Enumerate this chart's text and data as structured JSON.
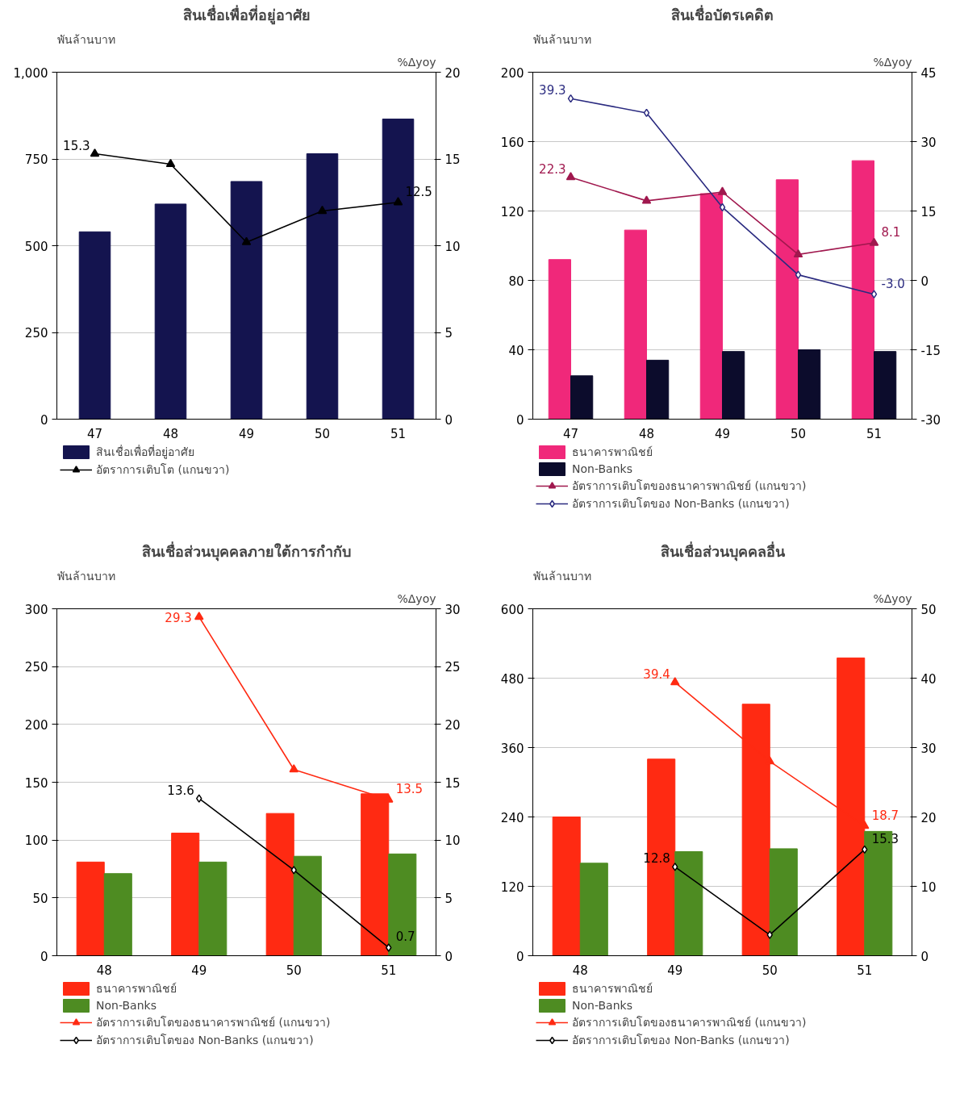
{
  "chart_data": [
    {
      "type": "bar",
      "title": "สินเชื่อเพื่อที่อยู่อาศัย",
      "ylabel": "พันล้านบาท",
      "y2label": "%Δyoy",
      "categories": [
        "47",
        "48",
        "49",
        "50",
        "51"
      ],
      "series": [
        {
          "name": "สินเชื่อเพื่อที่อยู่อาศัย",
          "color": "#14144f",
          "values": [
            540,
            620,
            685,
            765,
            865
          ]
        },
        {
          "name": "อัตราการเติบโต (แกนขวา)",
          "type": "line",
          "axis": "y2",
          "color": "#000000",
          "marker": "triangle",
          "values": [
            15.3,
            14.7,
            10.2,
            12.0,
            12.5
          ],
          "value_labels": [
            "15.3",
            null,
            null,
            null,
            "12.5"
          ]
        }
      ],
      "ylim": [
        0,
        1000
      ],
      "yticks": [
        0,
        250,
        500,
        750,
        {
          "value": 1000,
          "label": "1,000"
        }
      ],
      "y2lim": [
        0,
        20
      ],
      "y2ticks": [
        0,
        5,
        10,
        15,
        20
      ],
      "grid": "y",
      "legend": "bottom"
    },
    {
      "type": "bar",
      "title": "สินเชื่อบัตรเคดิต",
      "ylabel": "พันล้านบาท",
      "y2label": "%Δyoy",
      "categories": [
        "47",
        "48",
        "49",
        "50",
        "51"
      ],
      "series": [
        {
          "name": "ธนาคารพาณิชย์",
          "color": "#f0287a",
          "values": [
            92,
            109,
            130,
            138,
            149
          ]
        },
        {
          "name": "Non-Banks",
          "color": "#0c0c2c",
          "values": [
            25,
            34,
            39,
            40,
            39
          ]
        },
        {
          "name": "อัตราการเติบโตของธนาคารพาณิชย์ (แกนขวา)",
          "type": "line",
          "axis": "y2",
          "color": "#a0184e",
          "marker": "triangle",
          "values": [
            22.3,
            17.2,
            19.1,
            5.6,
            8.1
          ],
          "value_labels": [
            "22.3",
            null,
            null,
            null,
            "8.1"
          ]
        },
        {
          "name": "อัตราการเติบโตของ Non-Banks (แกนขวา)",
          "type": "line",
          "axis": "y2",
          "color": "#2b2b80",
          "marker": "diamond",
          "values": [
            39.3,
            36.2,
            15.8,
            1.2,
            -3.0
          ],
          "value_labels": [
            "39.3",
            null,
            null,
            null,
            "-3.0"
          ]
        }
      ],
      "ylim": [
        0,
        200
      ],
      "yticks": [
        0,
        40,
        80,
        120,
        160,
        200
      ],
      "y2lim": [
        -30,
        45
      ],
      "y2ticks": [
        -30,
        -15,
        0,
        15,
        30,
        45
      ],
      "grid": "y",
      "legend": "bottom"
    },
    {
      "type": "bar",
      "title": "สินเชื่อส่วนบุคคลภายใต้การกำกับ",
      "ylabel": "พันล้านบาท",
      "y2label": "%Δyoy",
      "categories": [
        "48",
        "49",
        "50",
        "51"
      ],
      "series": [
        {
          "name": "ธนาคารพาณิชย์",
          "color": "#ff2a12",
          "values": [
            81,
            106,
            123,
            140
          ]
        },
        {
          "name": "Non-Banks",
          "color": "#4e8c22",
          "values": [
            71,
            81,
            86,
            88
          ]
        },
        {
          "name": "อัตราการเติบโตของธนาคารพาณิชย์ (แกนขวา)",
          "type": "line",
          "axis": "y2",
          "color": "#ff2a12",
          "marker": "triangle",
          "values": [
            null,
            29.3,
            16.1,
            13.5
          ],
          "value_labels": [
            null,
            "29.3",
            null,
            "13.5"
          ]
        },
        {
          "name": "อัตราการเติบโตของ Non-Banks (แกนขวา)",
          "type": "line",
          "axis": "y2",
          "color": "#000000",
          "marker": "diamond",
          "values": [
            null,
            13.6,
            7.4,
            0.7
          ],
          "value_labels": [
            null,
            "13.6",
            null,
            "0.7"
          ]
        }
      ],
      "ylim": [
        0,
        300
      ],
      "yticks": [
        0,
        50,
        100,
        150,
        200,
        250,
        300
      ],
      "y2lim": [
        0,
        30
      ],
      "y2ticks": [
        0,
        5,
        10,
        15,
        20,
        25,
        30
      ],
      "grid": "y",
      "legend": "bottom"
    },
    {
      "type": "bar",
      "title": "สินเชื่อส่วนบุคคลอื่น",
      "ylabel": "พันล้านบาท",
      "y2label": "%Δyoy",
      "categories": [
        "48",
        "49",
        "50",
        "51"
      ],
      "series": [
        {
          "name": "ธนาคารพาณิชย์",
          "color": "#ff2a12",
          "values": [
            240,
            340,
            435,
            515
          ]
        },
        {
          "name": "Non-Banks",
          "color": "#4e8c22",
          "values": [
            160,
            180,
            185,
            215
          ]
        },
        {
          "name": "อัตราการเติบโตของธนาคารพาณิชย์ (แกนขวา)",
          "type": "line",
          "axis": "y2",
          "color": "#ff2a12",
          "marker": "triangle",
          "values": [
            null,
            39.4,
            28,
            18.7
          ],
          "value_labels": [
            null,
            "39.4",
            null,
            "18.7"
          ]
        },
        {
          "name": "อัตราการเติบโตของ Non-Banks (แกนขวา)",
          "type": "line",
          "axis": "y2",
          "color": "#000000",
          "marker": "diamond",
          "values": [
            null,
            12.8,
            3,
            15.3
          ],
          "value_labels": [
            null,
            "12.8",
            null,
            "15.3"
          ]
        }
      ],
      "ylim": [
        0,
        600
      ],
      "yticks": [
        0,
        120,
        240,
        360,
        480,
        600
      ],
      "y2lim": [
        0,
        50
      ],
      "y2ticks": [
        0,
        10,
        20,
        30,
        40,
        50
      ],
      "grid": "y",
      "legend": "bottom"
    }
  ]
}
